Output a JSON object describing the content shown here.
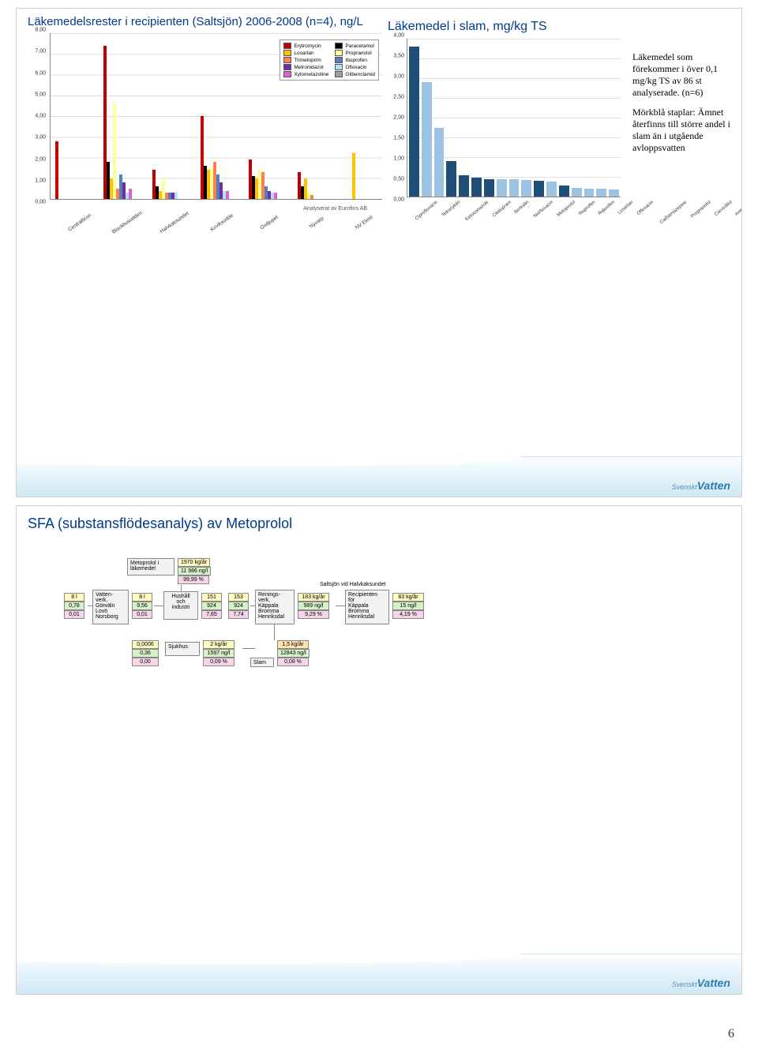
{
  "page_number": "6",
  "logo_text_prefix": "Svenskt",
  "logo_text_main": "Vatten",
  "slide1": {
    "left_title": "Läkemedelsrester i recipienten (Saltsjön) 2006-2008 (n=4), ng/L",
    "right_title": "Läkemedel i slam, mg/kg TS",
    "credit": "Analyserat av Eurofins AB",
    "grouped_chart": {
      "type": "grouped-bar",
      "ymax": 8.0,
      "ytick_step": 1.0,
      "ytick_labels": [
        "0,00",
        "1,00",
        "2,00",
        "3,00",
        "4,00",
        "5,00",
        "6,00",
        "7,00",
        "8,00"
      ],
      "series": [
        {
          "name": "Erytromycin",
          "color": "#c00000"
        },
        {
          "name": "Paracetamol",
          "color": "#000000"
        },
        {
          "name": "Losartan",
          "color": "#ffc000"
        },
        {
          "name": "Propranolol",
          "color": "#ffff99"
        },
        {
          "name": "Trimetoprim",
          "color": "#ff7f50"
        },
        {
          "name": "Ibuprofen",
          "color": "#4f81bd"
        },
        {
          "name": "Metronidazol",
          "color": "#7030a0"
        },
        {
          "name": "Ofloxacin",
          "color": "#b0e0ff"
        },
        {
          "name": "Xylometazoline",
          "color": "#e060d0"
        },
        {
          "name": "Glibenclamid",
          "color": "#a0a0a0"
        }
      ],
      "categories": [
        "Centralbron",
        "Blockhusudden",
        "Halvkaksundet",
        "Koviksudde",
        "Oxdjupet",
        "Nyvarp",
        "NV Eknö"
      ],
      "data": [
        [
          2.8,
          0.0,
          0.0,
          0.0,
          0.0,
          0.0,
          0.0,
          0.0,
          0.0,
          0.0
        ],
        [
          7.4,
          1.8,
          1.0,
          4.6,
          0.5,
          1.2,
          0.8,
          0.3,
          0.5,
          0.0
        ],
        [
          1.4,
          0.6,
          0.4,
          1.0,
          0.3,
          0.3,
          0.3,
          0.3,
          0.0,
          0.0
        ],
        [
          4.0,
          1.6,
          1.4,
          1.5,
          1.8,
          1.2,
          0.8,
          0.4,
          0.4,
          0.0
        ],
        [
          1.9,
          1.1,
          1.0,
          1.4,
          1.3,
          0.6,
          0.4,
          0.3,
          0.3,
          0.0
        ],
        [
          1.3,
          0.6,
          1.0,
          0.4,
          0.2,
          0.0,
          0.0,
          0.0,
          0.0,
          0.0
        ],
        [
          0.0,
          0.0,
          2.2,
          0.0,
          0.0,
          0.0,
          0.0,
          0.0,
          0.0,
          0.0
        ]
      ]
    },
    "slam_chart": {
      "type": "bar",
      "ymax": 4.0,
      "ytick_step": 0.5,
      "ytick_labels": [
        "0,00",
        "0,50",
        "1,00",
        "1,50",
        "2,00",
        "2,50",
        "3,00",
        "3,50",
        "4,00"
      ],
      "bar_color_light": "#9cc3e4",
      "bar_color_dark": "#1f4e79",
      "categories": [
        "Ciprofloxacin",
        "Tetracyklin",
        "Ketoconazole",
        "Citalopram",
        "Sertralin",
        "Norfloxacin",
        "Metoprolol",
        "Ibuprofen",
        "Raloxifen",
        "Losartan",
        "Ofloxacin",
        "Carbamazepine",
        "Propranolol",
        "Carvedilol",
        "Amlodipin",
        "Clozapine",
        "Felodipin"
      ],
      "values": [
        3.8,
        2.9,
        1.75,
        0.9,
        0.55,
        0.48,
        0.45,
        0.45,
        0.45,
        0.42,
        0.4,
        0.38,
        0.28,
        0.22,
        0.2,
        0.2,
        0.18
      ],
      "dark": [
        true,
        false,
        false,
        true,
        true,
        true,
        true,
        false,
        false,
        false,
        true,
        false,
        true,
        false,
        false,
        false,
        false
      ]
    },
    "side_text_1": "Läkemedel som förekommer i över 0,1 mg/kg TS av 86 st analyserade. (n=6)",
    "side_text_2": "Mörkblå staplar: Ämnet återfinns till större andel i slam än i utgående avloppsvatten"
  },
  "slide2": {
    "title": "SFA (substansflödesanalys) av Metoprolol",
    "flow": {
      "top_box": {
        "label": "Metoprolol i läkemedel",
        "val": "1970 kg/år",
        "sub": "11 986 ng/l",
        "pct": "99,99 %"
      },
      "left_in": {
        "top": "8 l",
        "mid": "0,78",
        "bot": "0,01"
      },
      "vattenverk": {
        "label": "Vatten-\nverk,\nGörväln\nLovö\nNorsborg",
        "out_top": "8 l",
        "out_mid": "9,56",
        "out_bot": "0,01"
      },
      "hushall": {
        "label": "Hushåll\noch\nindustri",
        "out_top": "151",
        "out_mid": "924",
        "out_bot": "7,65"
      },
      "renings": {
        "label": "Renings-\nverk,\nKäppala\nBromma\nHenriksdal",
        "in_top": "153",
        "in_mid": "924",
        "in_bot": "7,74",
        "out_top": "183 kg/år",
        "out_mid": "989 ng/l",
        "out_bot": "9,29 %"
      },
      "recip": {
        "label": "Recipienten\nför\nKäppala\nBromma\nHenriksdal",
        "out_top": "83 kg/år",
        "out_mid": "15 ng/l",
        "out_bot": "4,19 %"
      },
      "saltsjon_label": "Saltsjön vid Halvkaksundet",
      "sjukhus": {
        "label": "Sjukhus",
        "in_top": "0,0006",
        "in_mid": "0,36",
        "in_bot": "0,00",
        "out_top": "2 kg/år",
        "out_mid": "1597 ng/l",
        "out_bot": "0,09 %"
      },
      "slam": {
        "label": "Slam",
        "top": "1,5 kg/år",
        "mid": "12843 ng/l",
        "bot": "0,08 %"
      }
    }
  }
}
